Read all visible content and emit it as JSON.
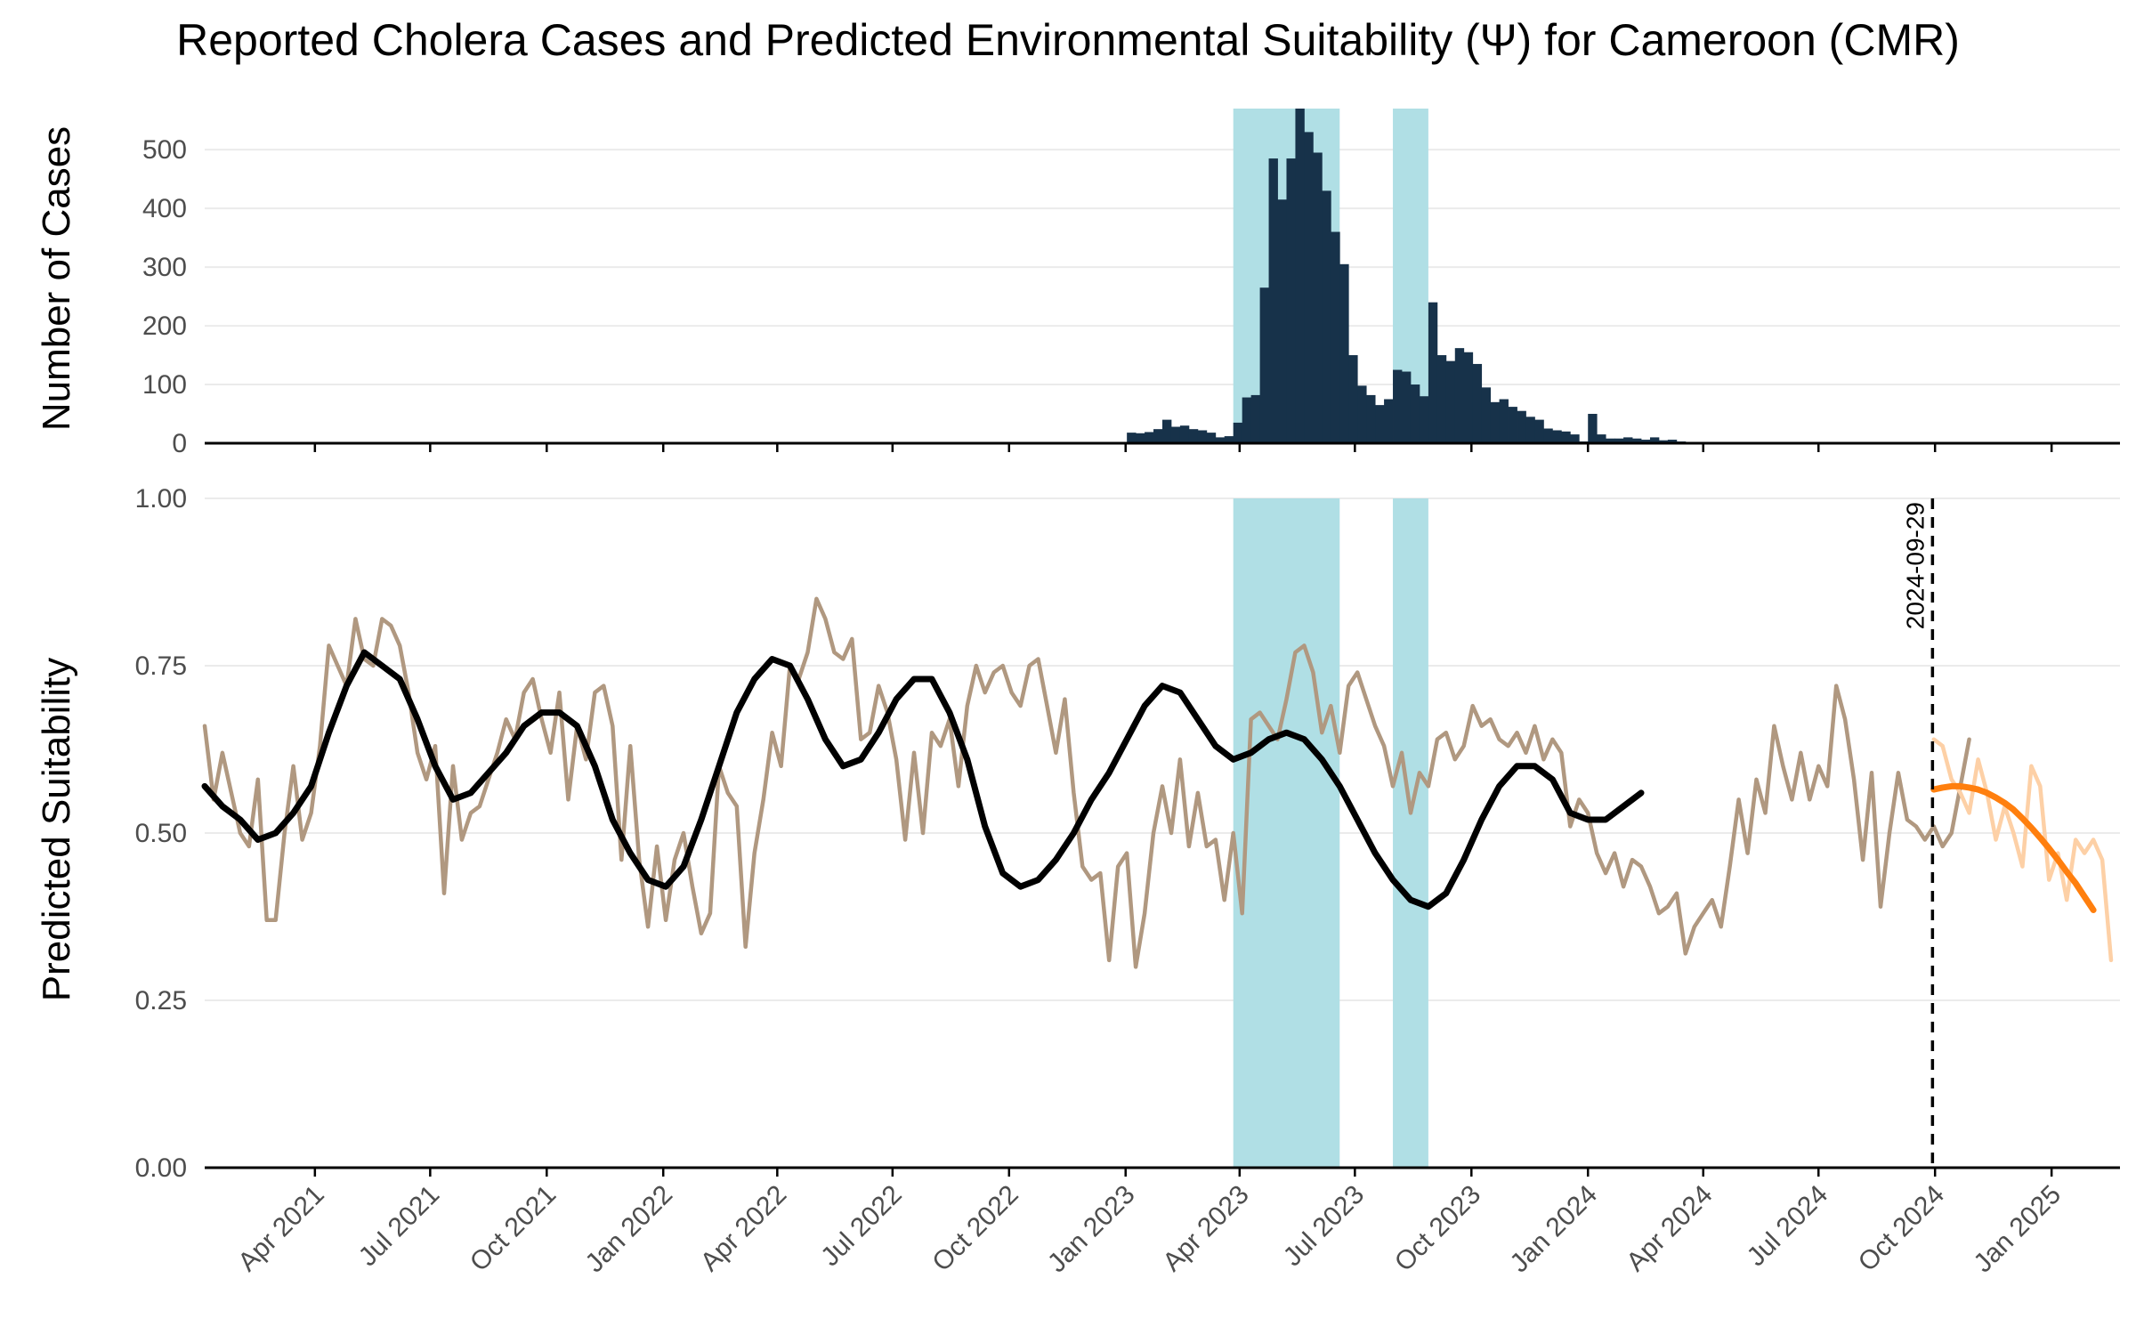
{
  "title": "Reported Cholera Cases and Predicted Environmental Suitability (Ψ) for Cameroon (CMR)",
  "colors": {
    "cases_bar": "#17324a",
    "outbreak_band": "#b0dfe5",
    "suitability_raw": "#b09880",
    "suitability_smooth": "#000000",
    "forecast_raw": "#fdd0a6",
    "forecast_smooth": "#ff7f0e",
    "grid": "#ebebeb",
    "axis": "#000000"
  },
  "x_axis": {
    "range": [
      "2021-01-04",
      "2025-02-24"
    ],
    "tick_dates": [
      "2021-04-01",
      "2021-07-01",
      "2021-10-01",
      "2022-01-01",
      "2022-04-01",
      "2022-07-01",
      "2022-10-01",
      "2023-01-01",
      "2023-04-01",
      "2023-07-01",
      "2023-10-01",
      "2024-01-01",
      "2024-04-01",
      "2024-07-01",
      "2024-10-01",
      "2025-01-01"
    ],
    "tick_labels": [
      "Apr 2021",
      "Jul 2021",
      "Oct 2021",
      "Jan 2022",
      "Apr 2022",
      "Jul 2022",
      "Oct 2022",
      "Jan 2023",
      "Apr 2023",
      "Jul 2023",
      "Oct 2023",
      "Jan 2024",
      "Apr 2024",
      "Jul 2024",
      "Oct 2024",
      "Jan 2025"
    ]
  },
  "chart_data": [
    {
      "type": "bar",
      "ylabel": "Number of Cases",
      "ylim": [
        0,
        570
      ],
      "yticks": [
        0,
        100,
        200,
        300,
        400,
        500
      ],
      "ytick_labels": [
        "0",
        "100",
        "200",
        "300",
        "400",
        "500"
      ],
      "grid": true,
      "outbreak_periods": [
        [
          "2023-03-27",
          "2023-06-19"
        ],
        [
          "2023-07-31",
          "2023-08-28"
        ]
      ],
      "weeks": [
        "2023-01-02",
        "2023-01-09",
        "2023-01-16",
        "2023-01-23",
        "2023-01-30",
        "2023-02-06",
        "2023-02-13",
        "2023-02-20",
        "2023-02-27",
        "2023-03-06",
        "2023-03-13",
        "2023-03-20",
        "2023-03-27",
        "2023-04-03",
        "2023-04-10",
        "2023-04-17",
        "2023-04-24",
        "2023-05-01",
        "2023-05-08",
        "2023-05-15",
        "2023-05-22",
        "2023-05-29",
        "2023-06-05",
        "2023-06-12",
        "2023-06-19",
        "2023-06-26",
        "2023-07-03",
        "2023-07-10",
        "2023-07-17",
        "2023-07-24",
        "2023-07-31",
        "2023-08-07",
        "2023-08-14",
        "2023-08-21",
        "2023-08-28",
        "2023-09-04",
        "2023-09-11",
        "2023-09-18",
        "2023-09-25",
        "2023-10-02",
        "2023-10-09",
        "2023-10-16",
        "2023-10-23",
        "2023-10-30",
        "2023-11-06",
        "2023-11-13",
        "2023-11-20",
        "2023-11-27",
        "2023-12-04",
        "2023-12-11",
        "2023-12-18",
        "2023-12-25",
        "2024-01-01",
        "2024-01-08",
        "2024-01-15",
        "2024-01-22",
        "2024-01-29",
        "2024-02-05",
        "2024-02-12",
        "2024-02-19",
        "2024-02-26",
        "2024-03-04",
        "2024-03-11",
        "2024-03-18",
        "2024-03-25",
        "2024-04-01",
        "2024-04-08",
        "2024-04-15",
        "2024-04-22",
        "2024-04-29",
        "2024-05-06",
        "2024-05-13",
        "2024-05-20",
        "2024-05-27",
        "2024-06-03",
        "2024-06-10",
        "2024-06-17",
        "2024-06-24"
      ],
      "cases": [
        18,
        17,
        19,
        24,
        40,
        28,
        30,
        24,
        22,
        18,
        10,
        12,
        35,
        78,
        82,
        265,
        485,
        415,
        485,
        570,
        530,
        495,
        430,
        360,
        305,
        150,
        98,
        82,
        65,
        75,
        125,
        122,
        100,
        80,
        240,
        150,
        140,
        162,
        155,
        135,
        95,
        70,
        75,
        62,
        55,
        45,
        40,
        25,
        22,
        20,
        15,
        3,
        50,
        15,
        8,
        8,
        10,
        8,
        6,
        10,
        5,
        6,
        3,
        2,
        1,
        1,
        1,
        1,
        1,
        2,
        1,
        1,
        1,
        1,
        1,
        1,
        1,
        1
      ]
    },
    {
      "type": "line",
      "ylabel": "Predicted Suitability",
      "ylim": [
        0,
        1
      ],
      "yticks": [
        0,
        0.25,
        0.5,
        0.75,
        1
      ],
      "ytick_labels": [
        "0.00",
        "0.25",
        "0.50",
        "0.75",
        "1.00"
      ],
      "grid": true,
      "outbreak_periods": [
        [
          "2023-03-27",
          "2023-06-19"
        ],
        [
          "2023-07-31",
          "2023-08-28"
        ]
      ],
      "forecast_start": "2024-09-29",
      "forecast_start_label": "2024-09-29",
      "observed_raw": {
        "start": "2021-01-04",
        "interval_days": 7,
        "values": [
          0.66,
          0.55,
          0.62,
          0.56,
          0.5,
          0.48,
          0.58,
          0.37,
          0.37,
          0.5,
          0.6,
          0.49,
          0.53,
          0.63,
          0.78,
          0.75,
          0.72,
          0.82,
          0.76,
          0.75,
          0.82,
          0.81,
          0.78,
          0.71,
          0.62,
          0.58,
          0.63,
          0.41,
          0.6,
          0.49,
          0.53,
          0.54,
          0.58,
          0.62,
          0.67,
          0.64,
          0.71,
          0.73,
          0.67,
          0.62,
          0.71,
          0.55,
          0.66,
          0.61,
          0.71,
          0.72,
          0.66,
          0.46,
          0.63,
          0.46,
          0.36,
          0.48,
          0.37,
          0.46,
          0.5,
          0.42,
          0.35,
          0.38,
          0.6,
          0.56,
          0.54,
          0.33,
          0.47,
          0.55,
          0.65,
          0.6,
          0.75,
          0.73,
          0.77,
          0.85,
          0.82,
          0.77,
          0.76,
          0.79,
          0.64,
          0.65,
          0.72,
          0.68,
          0.61,
          0.49,
          0.62,
          0.5,
          0.65,
          0.63,
          0.67,
          0.57,
          0.69,
          0.75,
          0.71,
          0.74,
          0.75,
          0.71,
          0.69,
          0.75,
          0.76,
          0.69,
          0.62,
          0.7,
          0.56,
          0.45,
          0.43,
          0.44,
          0.31,
          0.45,
          0.47,
          0.3,
          0.38,
          0.5,
          0.57,
          0.5,
          0.61,
          0.48,
          0.56,
          0.48,
          0.49,
          0.4,
          0.5,
          0.38,
          0.67,
          0.68,
          0.66,
          0.64,
          0.7,
          0.77,
          0.78,
          0.74,
          0.65,
          0.69,
          0.62,
          0.72,
          0.74,
          0.7,
          0.66,
          0.63,
          0.57,
          0.62,
          0.53,
          0.59,
          0.57,
          0.64,
          0.65,
          0.61,
          0.63,
          0.69,
          0.66,
          0.67,
          0.64,
          0.63,
          0.65,
          0.62,
          0.66,
          0.61,
          0.64,
          0.62,
          0.51,
          0.55,
          0.53,
          0.47,
          0.44,
          0.47,
          0.42,
          0.46,
          0.45,
          0.42,
          0.38,
          0.39,
          0.41,
          0.32,
          0.36,
          0.38,
          0.4,
          0.36,
          0.45,
          0.55,
          0.47,
          0.58,
          0.53,
          0.66,
          0.6,
          0.55,
          0.62,
          0.55,
          0.6,
          0.57,
          0.72,
          0.67,
          0.58,
          0.46,
          0.59,
          0.39,
          0.5,
          0.59,
          0.52,
          0.51,
          0.49,
          0.51,
          0.48,
          0.5,
          0.57,
          0.64
        ]
      },
      "observed_smooth": {
        "start": "2021-01-04",
        "interval_days": 14,
        "values": [
          0.57,
          0.54,
          0.52,
          0.49,
          0.5,
          0.53,
          0.57,
          0.65,
          0.72,
          0.77,
          0.75,
          0.73,
          0.67,
          0.6,
          0.55,
          0.56,
          0.59,
          0.62,
          0.66,
          0.68,
          0.68,
          0.66,
          0.6,
          0.52,
          0.47,
          0.43,
          0.42,
          0.45,
          0.52,
          0.6,
          0.68,
          0.73,
          0.76,
          0.75,
          0.7,
          0.64,
          0.6,
          0.61,
          0.65,
          0.7,
          0.73,
          0.73,
          0.68,
          0.61,
          0.51,
          0.44,
          0.42,
          0.43,
          0.46,
          0.5,
          0.55,
          0.59,
          0.64,
          0.69,
          0.72,
          0.71,
          0.67,
          0.63,
          0.61,
          0.62,
          0.64,
          0.65,
          0.64,
          0.61,
          0.57,
          0.52,
          0.47,
          0.43,
          0.4,
          0.39,
          0.41,
          0.46,
          0.52,
          0.57,
          0.6,
          0.6,
          0.58,
          0.53,
          0.52,
          0.52,
          0.54,
          0.56
        ]
      },
      "forecast_raw": {
        "start": "2024-09-30",
        "interval_days": 7,
        "values": [
          0.64,
          0.63,
          0.58,
          0.56,
          0.53,
          0.61,
          0.56,
          0.49,
          0.54,
          0.5,
          0.45,
          0.6,
          0.57,
          0.43,
          0.47,
          0.4,
          0.49,
          0.47,
          0.49,
          0.46,
          0.31
        ]
      },
      "forecast_smooth": {
        "start": "2024-09-30",
        "interval_days": 7,
        "values": [
          0.565,
          0.568,
          0.57,
          0.57,
          0.568,
          0.565,
          0.56,
          0.553,
          0.545,
          0.535,
          0.522,
          0.508,
          0.493,
          0.477,
          0.46,
          0.442,
          0.425,
          0.405,
          0.385
        ]
      }
    }
  ]
}
